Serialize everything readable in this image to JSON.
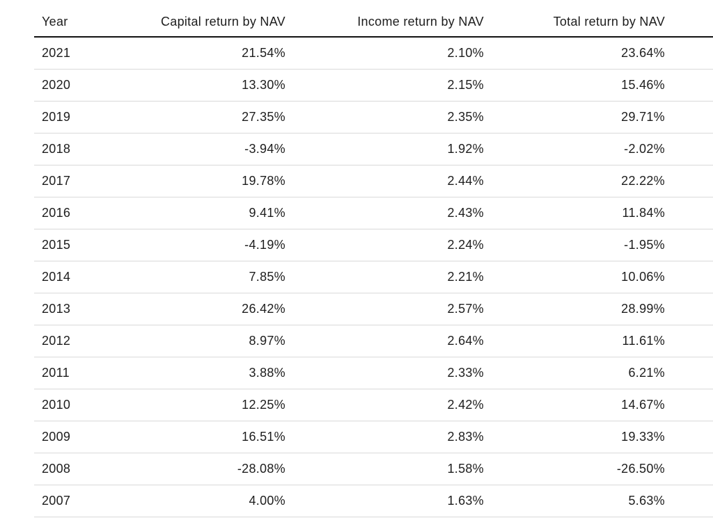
{
  "chart_data": {
    "type": "table",
    "columns": [
      "Year",
      "Capital return by NAV",
      "Income return by NAV",
      "Total return by NAV"
    ],
    "rows": [
      [
        "2021",
        "21.54%",
        "2.10%",
        "23.64%"
      ],
      [
        "2020",
        "13.30%",
        "2.15%",
        "15.46%"
      ],
      [
        "2019",
        "27.35%",
        "2.35%",
        "29.71%"
      ],
      [
        "2018",
        "-3.94%",
        "1.92%",
        "-2.02%"
      ],
      [
        "2017",
        "19.78%",
        "2.44%",
        "22.22%"
      ],
      [
        "2016",
        "9.41%",
        "2.43%",
        "11.84%"
      ],
      [
        "2015",
        "-4.19%",
        "2.24%",
        "-1.95%"
      ],
      [
        "2014",
        "7.85%",
        "2.21%",
        "10.06%"
      ],
      [
        "2013",
        "26.42%",
        "2.57%",
        "28.99%"
      ],
      [
        "2012",
        "8.97%",
        "2.64%",
        "11.61%"
      ],
      [
        "2011",
        "3.88%",
        "2.33%",
        "6.21%"
      ],
      [
        "2010",
        "12.25%",
        "2.42%",
        "14.67%"
      ],
      [
        "2009",
        "16.51%",
        "2.83%",
        "19.33%"
      ],
      [
        "2008",
        "-28.08%",
        "1.58%",
        "-26.50%"
      ],
      [
        "2007",
        "4.00%",
        "1.63%",
        "5.63%"
      ]
    ],
    "layout": {
      "grid": "horizontal-rules-only",
      "header_rule_color": "#111111",
      "row_rule_color": "#d9d9d9",
      "numeric_alignment": "right"
    }
  },
  "colors": {
    "text": "#1d1d1d",
    "header_rule": "#111111",
    "row_rule": "#d9d9d9",
    "background": "#ffffff"
  }
}
